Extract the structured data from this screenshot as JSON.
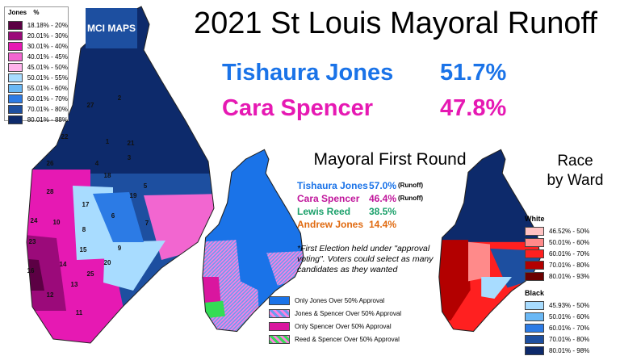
{
  "title": "2021 St Louis Mayoral Runoff",
  "logo": "MCI MAPS",
  "runoff": [
    {
      "name": "Tishaura Jones",
      "pct": "51.7%",
      "color": "#1a73e8"
    },
    {
      "name": "Cara Spencer",
      "pct": "47.8%",
      "color": "#e619b3"
    }
  ],
  "jones_legend": {
    "header": [
      "Jones",
      "%"
    ],
    "items": [
      {
        "label": "18.18% - 20%",
        "color": "#5c0044"
      },
      {
        "label": "20.01% - 30%",
        "color": "#9b0a7a"
      },
      {
        "label": "30.01% - 40%",
        "color": "#e619b3"
      },
      {
        "label": "40.01% - 45%",
        "color": "#f266d0"
      },
      {
        "label": "45.01% - 50%",
        "color": "#ffb3ec"
      },
      {
        "label": "50.01% - 55%",
        "color": "#a8dcff"
      },
      {
        "label": "55.01% - 60%",
        "color": "#6ab8f5"
      },
      {
        "label": "60.01% - 70%",
        "color": "#2c7be5"
      },
      {
        "label": "70.01% - 80%",
        "color": "#1d4fa0"
      },
      {
        "label": "80.01% - 88%",
        "color": "#0d2a6b"
      }
    ]
  },
  "wards": [
    "27",
    "2",
    "22",
    "1",
    "21",
    "3",
    "26",
    "4",
    "5",
    "18",
    "19",
    "28",
    "17",
    "6",
    "24",
    "10",
    "8",
    "7",
    "23",
    "15",
    "9",
    "16",
    "14",
    "25",
    "20",
    "13",
    "12",
    "11"
  ],
  "first_round": {
    "title": "Mayoral First Round",
    "rows": [
      {
        "name": "Tishaura Jones",
        "pct": "57.0%",
        "note": "(Runoff)",
        "color": "#1a73e8"
      },
      {
        "name": "Cara Spencer",
        "pct": "46.4%",
        "note": "(Runoff)",
        "color": "#c0169b"
      },
      {
        "name": "Lewis Reed",
        "pct": "38.5%",
        "color": "#1aa06a"
      },
      {
        "name": "Andrew Jones",
        "pct": "14.4%",
        "color": "#e06a10"
      }
    ],
    "footnote": "*First Election held under \"approval voting\".  Voters could select as many candidates as they wanted"
  },
  "approval_legend": [
    {
      "label": "Only Jones Over 50% Approval",
      "color": "#1a73e8",
      "color2": "#1a73e8"
    },
    {
      "label": "Jones & Spencer Over 50% Approval",
      "color": "#6a9cf0",
      "color2": "#ff80e0"
    },
    {
      "label": "Only Spencer Over 50% Approval",
      "color": "#d9169f",
      "color2": "#d9169f"
    },
    {
      "label": "Reed & Spencer Over 50% Approval",
      "color": "#33dd55",
      "color2": "#ff80e0"
    }
  ],
  "race": {
    "title": [
      "Race",
      "by Ward"
    ],
    "groups": [
      {
        "name": "White",
        "items": [
          {
            "label": "46.52% - 50%",
            "color": "#ffc2c2"
          },
          {
            "label": "50.01% - 60%",
            "color": "#ff8a8a"
          },
          {
            "label": "60.01% - 70%",
            "color": "#ff2020"
          },
          {
            "label": "70.01% - 80%",
            "color": "#b30000"
          },
          {
            "label": "80.01% - 93%",
            "color": "#6b0000"
          }
        ]
      },
      {
        "name": "Black",
        "items": [
          {
            "label": "45.93% - 50%",
            "color": "#a8dcff"
          },
          {
            "label": "50.01% - 60%",
            "color": "#6ab8f5"
          },
          {
            "label": "60.01% - 70%",
            "color": "#2c7be5"
          },
          {
            "label": "70.01% - 80%",
            "color": "#1d4fa0"
          },
          {
            "label": "80.01% - 98%",
            "color": "#0d2a6b"
          }
        ]
      }
    ]
  }
}
